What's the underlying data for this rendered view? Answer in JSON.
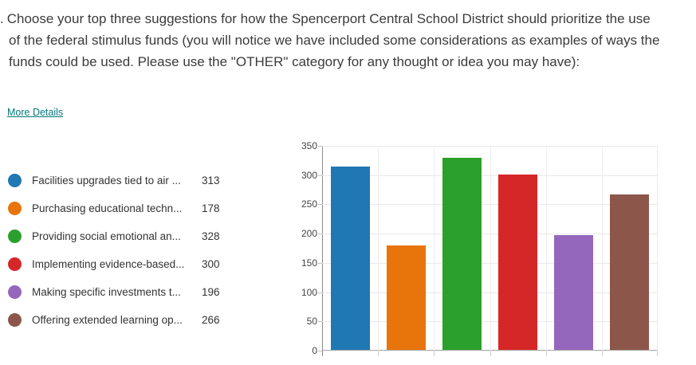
{
  "question": {
    "number_fragment": ".",
    "text": "Choose your top three suggestions for how the Spencerport Central School District should prioritize the use of the federal stimulus funds (you will notice we have included some considerations as examples of ways the funds could be used. Please use the \"OTHER\" category for any thought or idea you may have):",
    "more_details_label": "More Details"
  },
  "legend": {
    "items": [
      {
        "label": "Facilities upgrades tied to air ...",
        "value": "313",
        "color": "#1f77b4"
      },
      {
        "label": "Purchasing educational techn...",
        "value": "178",
        "color": "#e8740c"
      },
      {
        "label": "Providing social emotional an...",
        "value": "328",
        "color": "#2ca02c"
      },
      {
        "label": "Implementing evidence-based...",
        "value": "300",
        "color": "#d62728"
      },
      {
        "label": "Making specific investments t...",
        "value": "196",
        "color": "#9467bd"
      },
      {
        "label": "Offering extended learning op...",
        "value": "266",
        "color": "#8c564b"
      }
    ]
  },
  "chart_data": {
    "type": "bar",
    "categories": [
      "Facilities upgrades tied to air ...",
      "Purchasing educational techn...",
      "Providing social emotional an...",
      "Implementing evidence-based...",
      "Making specific investments t...",
      "Offering extended learning op..."
    ],
    "values": [
      313,
      178,
      328,
      300,
      196,
      266
    ],
    "colors": [
      "#1f77b4",
      "#e8740c",
      "#2ca02c",
      "#d62728",
      "#9467bd",
      "#8c564b"
    ],
    "title": "",
    "xlabel": "",
    "ylabel": "",
    "ylim": [
      0,
      350
    ],
    "yticks": [
      0,
      50,
      100,
      150,
      200,
      250,
      300,
      350
    ],
    "grid": true,
    "legend_position": "left"
  },
  "colors": {
    "link_teal": "#03787c",
    "body_text": "#3b3b3b",
    "gridline": "#e9e9e9",
    "axis_line": "#8a8a8a"
  }
}
